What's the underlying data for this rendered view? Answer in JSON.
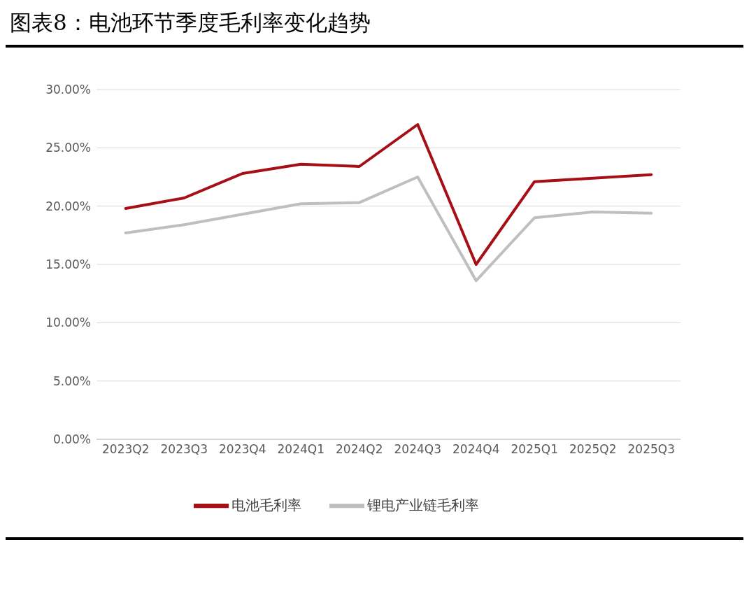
{
  "chart_data": {
    "type": "line",
    "title": "图表8：电池环节季度毛利率变化趋势",
    "categories": [
      "2023Q2",
      "2023Q3",
      "2023Q4",
      "2024Q1",
      "2024Q2",
      "2024Q3",
      "2024Q4",
      "2025Q1",
      "2025Q2",
      "2025Q3"
    ],
    "series": [
      {
        "name": "电池毛利率",
        "color": "#a50f15",
        "values": [
          19.8,
          20.7,
          22.8,
          23.6,
          23.4,
          27.0,
          15.0,
          22.1,
          22.4,
          22.7
        ]
      },
      {
        "name": "锂电产业链毛利率",
        "color": "#bfbfbf",
        "values": [
          17.7,
          18.4,
          19.3,
          20.2,
          20.3,
          22.5,
          13.6,
          19.0,
          19.5,
          19.4
        ]
      }
    ],
    "ylim": [
      0,
      30
    ],
    "yticks": [
      {
        "value": 0,
        "label": "0.00%"
      },
      {
        "value": 5,
        "label": "5.00%"
      },
      {
        "value": 10,
        "label": "10.00%"
      },
      {
        "value": 15,
        "label": "15.00%"
      },
      {
        "value": 20,
        "label": "20.00%"
      },
      {
        "value": 25,
        "label": "25.00%"
      },
      {
        "value": 30,
        "label": "30.00%"
      }
    ],
    "grid": "y",
    "legend": "bottom",
    "marker": "none",
    "line_style": "solid"
  }
}
